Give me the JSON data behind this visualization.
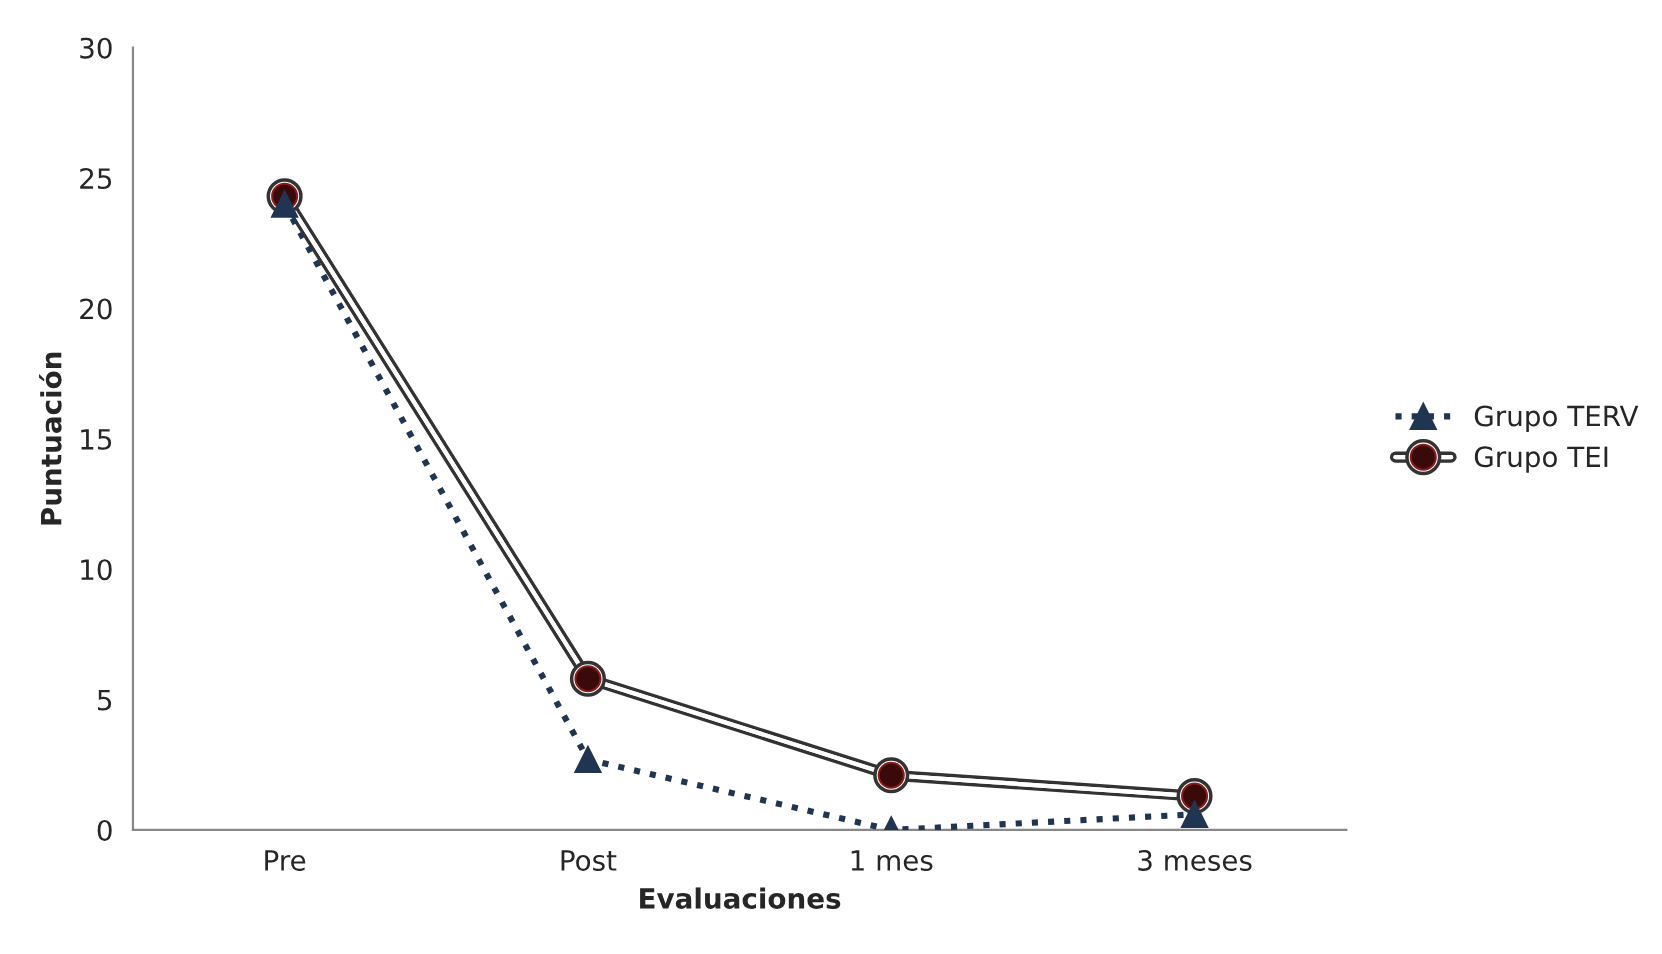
{
  "chart_data": {
    "type": "line",
    "xlabel": "Evaluaciones",
    "ylabel": "Puntuación",
    "categories": [
      "Pre",
      "Post",
      "1 mes",
      "3 meses"
    ],
    "series": [
      {
        "name": "Grupo TERV",
        "color": "#1f3552",
        "values": [
          24.0,
          2.7,
          0.0,
          0.6
        ],
        "marker": "triangle",
        "line_style": "dotted"
      },
      {
        "name": "Grupo TEI",
        "color": "#3a0a0a",
        "values": [
          24.3,
          5.8,
          2.1,
          1.3
        ],
        "marker": "circle",
        "line_style": "solid"
      }
    ],
    "ylim": [
      0,
      30
    ],
    "yticks": [
      0,
      5,
      10,
      15,
      20,
      25,
      30
    ],
    "grid": false,
    "legend": "right"
  }
}
